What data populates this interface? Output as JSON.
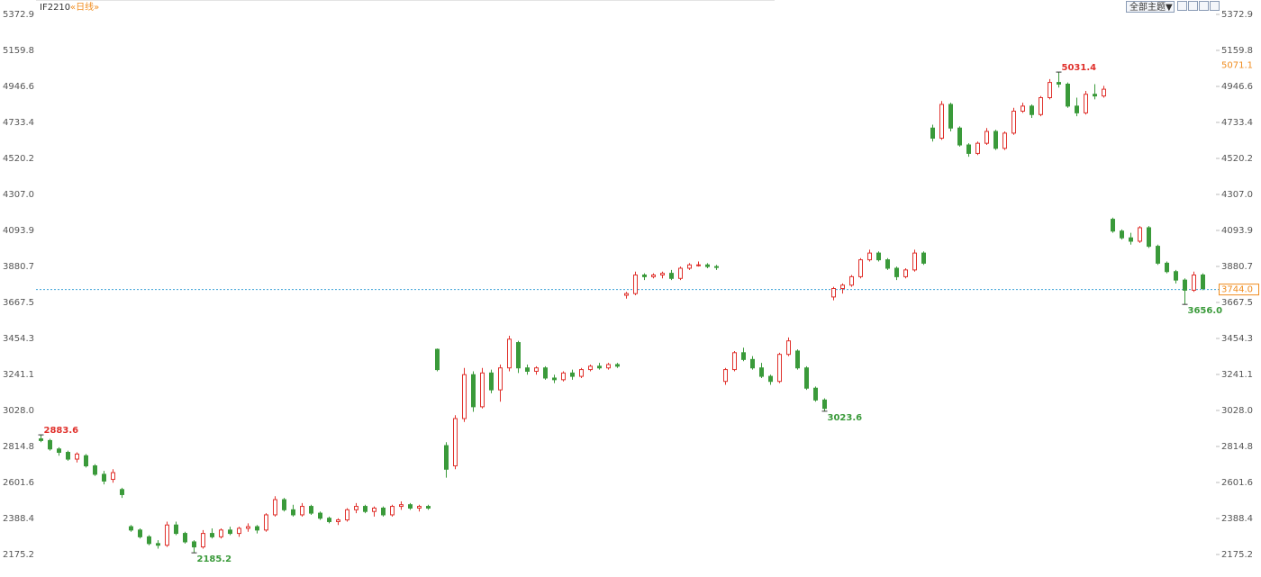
{
  "header": {
    "symbol": "IF2210",
    "period": "«日线»",
    "theme_button": "全部主题▼"
  },
  "chart_data": {
    "type": "candlestick",
    "up_color": "#e0312c",
    "down_color": "#3a9a3a",
    "ylim": [
      2042.0,
      5458.2
    ],
    "yticks": [
      2175.2,
      2388.4,
      2601.6,
      2814.8,
      {
        "value": 3028,
        "label": "3028.0"
      },
      3241.1,
      3454.3,
      3667.5,
      3880.7,
      4093.9,
      {
        "value": 4307,
        "label": "4307.0"
      },
      4520.2,
      4733.4,
      4946.6,
      5159.8,
      5372.9
    ],
    "ohlc": [
      [
        2860,
        2883.6,
        2840,
        2850
      ],
      [
        2850,
        2860,
        2790,
        2800
      ],
      [
        2800,
        2810,
        2760,
        2780
      ],
      [
        2780,
        2790,
        2730,
        2740
      ],
      [
        2740,
        2780,
        2720,
        2770
      ],
      [
        2760,
        2770,
        2690,
        2700
      ],
      [
        2700,
        2710,
        2640,
        2650
      ],
      [
        2650,
        2670,
        2590,
        2610
      ],
      [
        2620,
        2680,
        2600,
        2660
      ],
      [
        2560,
        2570,
        2510,
        2530
      ],
      [
        2340,
        2350,
        2310,
        2320
      ],
      [
        2320,
        2330,
        2270,
        2280
      ],
      [
        2280,
        2290,
        2230,
        2240
      ],
      [
        2240,
        2260,
        2210,
        2230
      ],
      [
        2230,
        2370,
        2220,
        2350
      ],
      [
        2350,
        2370,
        2290,
        2300
      ],
      [
        2300,
        2310,
        2240,
        2250
      ],
      [
        2250,
        2260,
        2185.2,
        2220
      ],
      [
        2220,
        2320,
        2210,
        2300
      ],
      [
        2300,
        2330,
        2270,
        2280
      ],
      [
        2280,
        2330,
        2270,
        2320
      ],
      [
        2320,
        2340,
        2290,
        2300
      ],
      [
        2300,
        2340,
        2280,
        2330
      ],
      [
        2330,
        2360,
        2310,
        2340
      ],
      [
        2340,
        2350,
        2300,
        2320
      ],
      [
        2320,
        2420,
        2310,
        2410
      ],
      [
        2410,
        2520,
        2400,
        2500
      ],
      [
        2500,
        2510,
        2430,
        2440
      ],
      [
        2440,
        2470,
        2400,
        2410
      ],
      [
        2410,
        2480,
        2400,
        2460
      ],
      [
        2460,
        2470,
        2410,
        2420
      ],
      [
        2420,
        2430,
        2380,
        2390
      ],
      [
        2390,
        2400,
        2360,
        2370
      ],
      [
        2370,
        2390,
        2350,
        2380
      ],
      [
        2380,
        2450,
        2370,
        2440
      ],
      [
        2440,
        2480,
        2420,
        2460
      ],
      [
        2460,
        2470,
        2420,
        2430
      ],
      [
        2430,
        2460,
        2400,
        2450
      ],
      [
        2450,
        2460,
        2400,
        2410
      ],
      [
        2410,
        2470,
        2400,
        2460
      ],
      [
        2460,
        2490,
        2440,
        2470
      ],
      [
        2470,
        2480,
        2440,
        2450
      ],
      [
        2450,
        2470,
        2430,
        2460
      ],
      [
        2460,
        2470,
        2440,
        2450
      ],
      [
        3390,
        3395,
        3260,
        3270
      ],
      [
        2820,
        2840,
        2630,
        2680
      ],
      [
        2700,
        3000,
        2680,
        2980
      ],
      [
        2980,
        3280,
        2960,
        3240
      ],
      [
        3240,
        3260,
        3020,
        3050
      ],
      [
        3050,
        3280,
        3040,
        3250
      ],
      [
        3250,
        3270,
        3130,
        3150
      ],
      [
        3150,
        3300,
        3080,
        3280
      ],
      [
        3280,
        3470,
        3260,
        3450
      ],
      [
        3430,
        3440,
        3250,
        3280
      ],
      [
        3280,
        3300,
        3240,
        3260
      ],
      [
        3260,
        3290,
        3240,
        3280
      ],
      [
        3280,
        3290,
        3210,
        3220
      ],
      [
        3220,
        3240,
        3190,
        3210
      ],
      [
        3210,
        3260,
        3200,
        3250
      ],
      [
        3250,
        3270,
        3210,
        3230
      ],
      [
        3230,
        3280,
        3220,
        3270
      ],
      [
        3270,
        3300,
        3260,
        3290
      ],
      [
        3290,
        3310,
        3270,
        3280
      ],
      [
        3280,
        3310,
        3270,
        3300
      ],
      [
        3300,
        3310,
        3280,
        3290
      ],
      [
        3710,
        3730,
        3690,
        3720
      ],
      [
        3720,
        3850,
        3710,
        3830
      ],
      [
        3830,
        3840,
        3800,
        3820
      ],
      [
        3820,
        3840,
        3810,
        3830
      ],
      [
        3830,
        3850,
        3810,
        3840
      ],
      [
        3840,
        3860,
        3800,
        3810
      ],
      [
        3810,
        3880,
        3800,
        3870
      ],
      [
        3870,
        3900,
        3860,
        3890
      ],
      [
        3890,
        3910,
        3880,
        3890
      ],
      [
        3890,
        3900,
        3870,
        3880
      ],
      [
        3880,
        3890,
        3860,
        3875
      ],
      [
        3200,
        3280,
        3180,
        3270
      ],
      [
        3270,
        3380,
        3260,
        3370
      ],
      [
        3370,
        3400,
        3320,
        3330
      ],
      [
        3330,
        3350,
        3270,
        3280
      ],
      [
        3280,
        3310,
        3220,
        3230
      ],
      [
        3230,
        3240,
        3180,
        3200
      ],
      [
        3200,
        3370,
        3190,
        3360
      ],
      [
        3360,
        3460,
        3350,
        3440
      ],
      [
        3380,
        3390,
        3270,
        3280
      ],
      [
        3280,
        3290,
        3150,
        3160
      ],
      [
        3160,
        3170,
        3080,
        3090
      ],
      [
        3090,
        3100,
        3023.6,
        3040
      ],
      [
        3700,
        3760,
        3680,
        3750
      ],
      [
        3750,
        3780,
        3720,
        3770
      ],
      [
        3770,
        3830,
        3760,
        3820
      ],
      [
        3820,
        3930,
        3810,
        3920
      ],
      [
        3920,
        3980,
        3910,
        3960
      ],
      [
        3960,
        3970,
        3910,
        3920
      ],
      [
        3920,
        3930,
        3860,
        3870
      ],
      [
        3870,
        3880,
        3800,
        3820
      ],
      [
        3820,
        3870,
        3810,
        3860
      ],
      [
        3860,
        3980,
        3850,
        3960
      ],
      [
        3960,
        3970,
        3890,
        3900
      ],
      [
        4700,
        4720,
        4620,
        4640
      ],
      [
        4640,
        4860,
        4630,
        4840
      ],
      [
        4840,
        4850,
        4680,
        4700
      ],
      [
        4700,
        4710,
        4590,
        4600
      ],
      [
        4600,
        4610,
        4530,
        4550
      ],
      [
        4550,
        4620,
        4540,
        4610
      ],
      [
        4610,
        4700,
        4600,
        4680
      ],
      [
        4680,
        4690,
        4570,
        4580
      ],
      [
        4580,
        4680,
        4570,
        4670
      ],
      [
        4670,
        4820,
        4660,
        4800
      ],
      [
        4800,
        4850,
        4790,
        4830
      ],
      [
        4830,
        4840,
        4760,
        4780
      ],
      [
        4780,
        4890,
        4770,
        4880
      ],
      [
        4880,
        4990,
        4870,
        4970
      ],
      [
        4970,
        5031.4,
        4940,
        4960
      ],
      [
        4960,
        4970,
        4820,
        4830
      ],
      [
        4830,
        4880,
        4770,
        4790
      ],
      [
        4790,
        4920,
        4780,
        4900
      ],
      [
        4900,
        4960,
        4870,
        4890
      ],
      [
        4890,
        4950,
        4880,
        4930
      ],
      [
        4160,
        4170,
        4080,
        4090
      ],
      [
        4090,
        4100,
        4040,
        4050
      ],
      [
        4050,
        4080,
        4010,
        4030
      ],
      [
        4030,
        4120,
        4020,
        4110
      ],
      [
        4110,
        4120,
        3990,
        4000
      ],
      [
        4000,
        4010,
        3890,
        3900
      ],
      [
        3900,
        3910,
        3840,
        3850
      ],
      [
        3850,
        3860,
        3780,
        3800
      ],
      [
        3800,
        3810,
        3656,
        3740
      ],
      [
        3740,
        3850,
        3730,
        3830
      ],
      [
        3830,
        3840,
        3740,
        3750
      ]
    ],
    "extreme_labels": [
      2883.6,
      2185.2,
      3023.6,
      5031.4,
      {
        "value": 3656,
        "label": "3656.0"
      }
    ],
    "last_price": {
      "value": 3744,
      "label": "3744.0"
    },
    "ref_price": 5071.1,
    "price_color": "#f08c1e",
    "line_color": "#3aa0d8"
  }
}
